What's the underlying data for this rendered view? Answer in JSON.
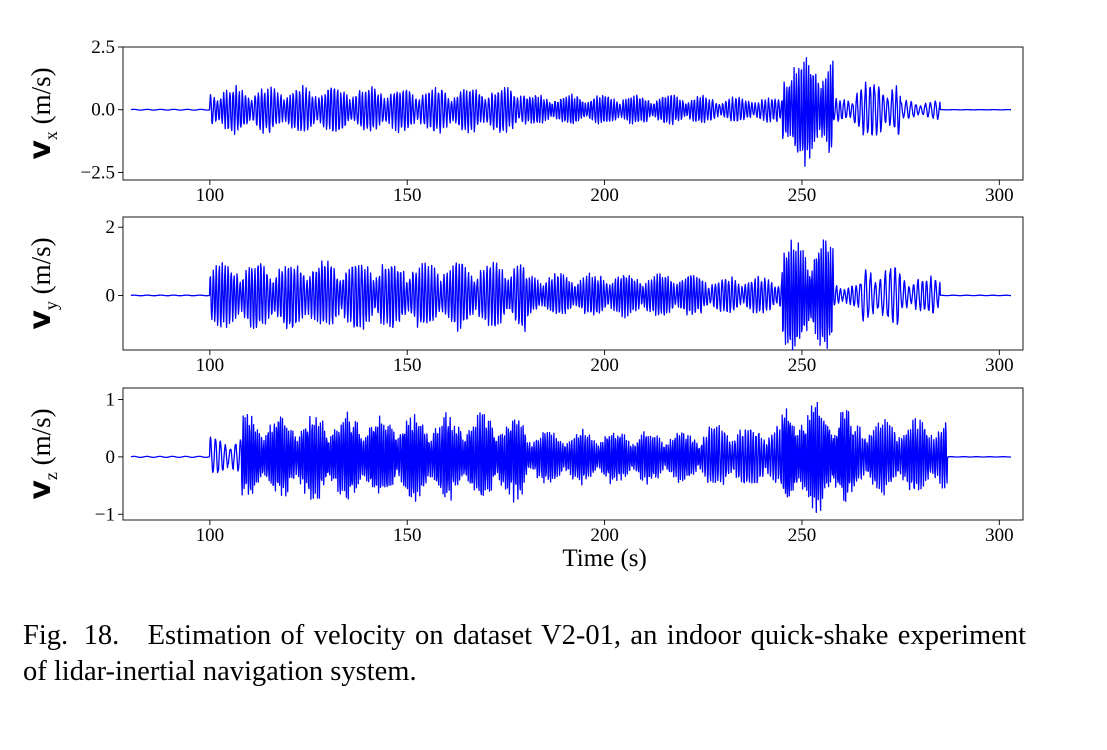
{
  "figure": {
    "xlabel": "Time (s)",
    "xlim": [
      78,
      306
    ],
    "xticks": [
      100,
      150,
      200,
      250,
      300
    ],
    "line_color": "#0000ff"
  },
  "chart_data": [
    {
      "type": "line",
      "ylabel": "v_x (m/s)",
      "ylabel_base": "v",
      "ylabel_sub": "x",
      "ylabel_unit": "(m/s)",
      "ylim": [
        -2.8,
        2.5
      ],
      "yticks": [
        2.5,
        0.0,
        -2.5
      ],
      "ytick_labels": [
        "2.5",
        "0.0",
        "−2.5"
      ],
      "x_start": 80,
      "x_end": 303,
      "segments": [
        {
          "t0": 80,
          "t1": 100,
          "amp": 0.05,
          "freq": 0.3
        },
        {
          "t0": 100,
          "t1": 180,
          "amp": 1.0,
          "freq": 1.25
        },
        {
          "t0": 180,
          "t1": 225,
          "amp": 0.65,
          "freq": 1.4
        },
        {
          "t0": 225,
          "t1": 245,
          "amp": 0.55,
          "freq": 1.2
        },
        {
          "t0": 245,
          "t1": 258,
          "amp": 2.3,
          "freq": 1.6
        },
        {
          "t0": 258,
          "t1": 263,
          "amp": 0.5,
          "freq": 1.0
        },
        {
          "t0": 263,
          "t1": 275,
          "amp": 1.2,
          "freq": 0.9
        },
        {
          "t0": 275,
          "t1": 285,
          "amp": 0.4,
          "freq": 0.8
        },
        {
          "t0": 285,
          "t1": 303,
          "amp": 0.02,
          "freq": 0.3
        }
      ]
    },
    {
      "type": "line",
      "ylabel": "v_y (m/s)",
      "ylabel_base": "v",
      "ylabel_sub": "y",
      "ylabel_unit": "(m/s)",
      "ylim": [
        -1.6,
        2.3
      ],
      "yticks": [
        2,
        0
      ],
      "ytick_labels": [
        "2",
        "0"
      ],
      "x_start": 80,
      "x_end": 303,
      "segments": [
        {
          "t0": 80,
          "t1": 100,
          "amp": 0.03,
          "freq": 0.3
        },
        {
          "t0": 100,
          "t1": 180,
          "amp": 1.1,
          "freq": 1.3
        },
        {
          "t0": 180,
          "t1": 225,
          "amp": 0.7,
          "freq": 1.4
        },
        {
          "t0": 225,
          "t1": 245,
          "amp": 0.6,
          "freq": 1.2
        },
        {
          "t0": 245,
          "t1": 258,
          "amp": 1.8,
          "freq": 1.7
        },
        {
          "t0": 258,
          "t1": 265,
          "amp": 0.4,
          "freq": 1.0
        },
        {
          "t0": 265,
          "t1": 275,
          "amp": 0.9,
          "freq": 0.8
        },
        {
          "t0": 275,
          "t1": 285,
          "amp": 0.6,
          "freq": 0.9
        },
        {
          "t0": 285,
          "t1": 303,
          "amp": 0.02,
          "freq": 0.3
        }
      ]
    },
    {
      "type": "line",
      "ylabel": "v_z (m/s)",
      "ylabel_base": "v",
      "ylabel_sub": "z",
      "ylabel_unit": "(m/s)",
      "ylim": [
        -1.1,
        1.2
      ],
      "yticks": [
        1,
        0,
        -1
      ],
      "ytick_labels": [
        "1",
        "0",
        "−1"
      ],
      "x_start": 80,
      "x_end": 303,
      "segments": [
        {
          "t0": 80,
          "t1": 100,
          "amp": 0.03,
          "freq": 0.3
        },
        {
          "t0": 100,
          "t1": 108,
          "amp": 0.35,
          "freq": 0.8
        },
        {
          "t0": 108,
          "t1": 180,
          "amp": 0.8,
          "freq": 1.9
        },
        {
          "t0": 180,
          "t1": 225,
          "amp": 0.5,
          "freq": 1.8
        },
        {
          "t0": 225,
          "t1": 245,
          "amp": 0.6,
          "freq": 1.5
        },
        {
          "t0": 245,
          "t1": 262,
          "amp": 1.0,
          "freq": 2.0
        },
        {
          "t0": 262,
          "t1": 287,
          "amp": 0.7,
          "freq": 1.7
        },
        {
          "t0": 287,
          "t1": 303,
          "amp": 0.01,
          "freq": 0.3
        }
      ]
    }
  ],
  "caption": {
    "label": "Fig. 18.",
    "text": "Estimation of velocity on dataset V2-01, an indoor quick-shake experiment of lidar-inertial navigation system."
  }
}
